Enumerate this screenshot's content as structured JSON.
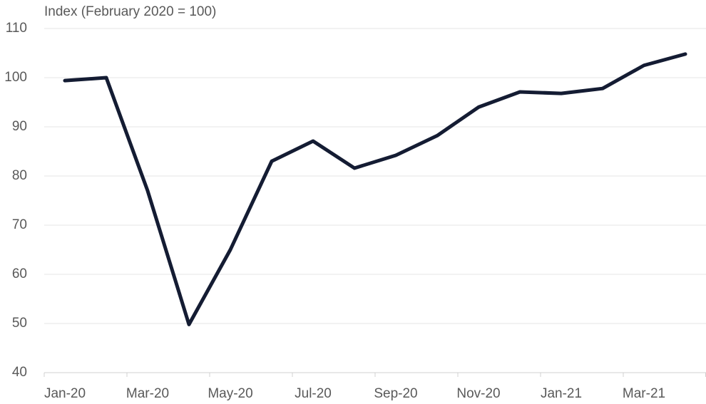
{
  "chart_data": {
    "type": "line",
    "y_axis_label": "Index (February 2020 = 100)",
    "categories": [
      "Jan-20",
      null,
      "Mar-20",
      null,
      "May-20",
      null,
      "Jul-20",
      null,
      "Sep-20",
      null,
      "Nov-20",
      null,
      "Jan-21",
      null,
      "Mar-21",
      null
    ],
    "series": [
      {
        "name": "Index",
        "color": "#141c33",
        "values": [
          99.4,
          100,
          77,
          49.8,
          65,
          83,
          87.1,
          81.6,
          84.2,
          88.2,
          94,
          97.1,
          96.8,
          97.8,
          102.5,
          104.8
        ]
      }
    ],
    "ylim": [
      40,
      110
    ],
    "yticks": [
      40,
      50,
      60,
      70,
      80,
      90,
      100,
      110
    ],
    "grid": true
  }
}
